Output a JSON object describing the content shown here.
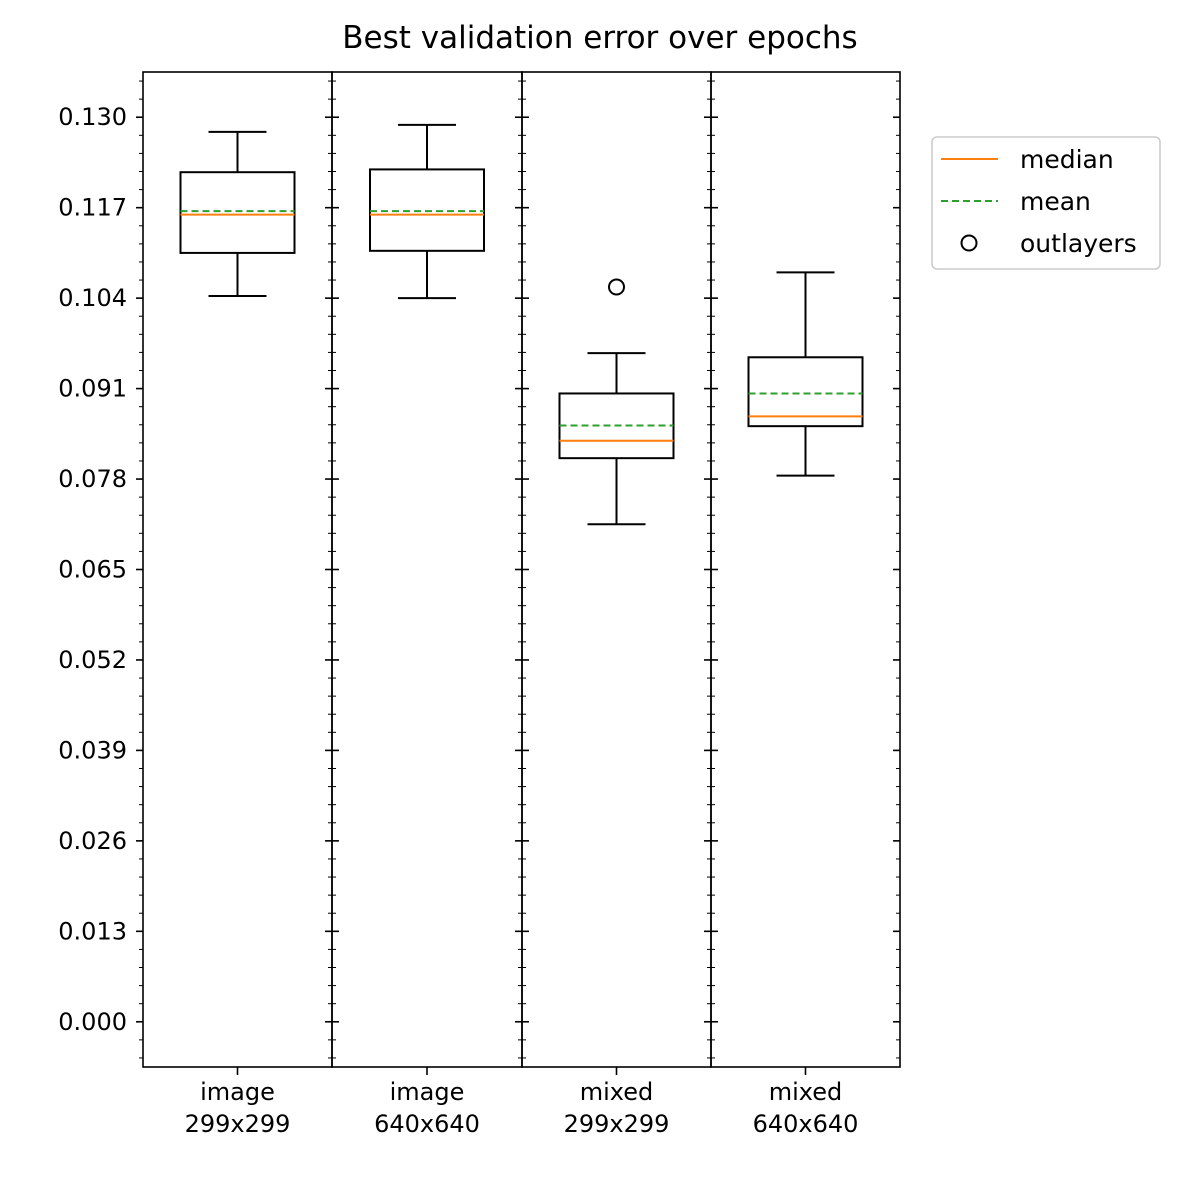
{
  "chart_data": {
    "type": "box",
    "title": "Best validation error over epochs",
    "xlabel": "",
    "ylabel": "",
    "ylim": [
      -0.0065,
      0.1365
    ],
    "yticks": [
      "0.000",
      "0.013",
      "0.026",
      "0.039",
      "0.052",
      "0.065",
      "0.078",
      "0.091",
      "0.104",
      "0.117",
      "0.130"
    ],
    "grid": false,
    "legend_position": "outside-right-top",
    "categories": [
      [
        "image",
        "299x299"
      ],
      [
        "image",
        "640x640"
      ],
      [
        "mixed",
        "299x299"
      ],
      [
        "mixed",
        "640x640"
      ]
    ],
    "boxes": [
      {
        "whisker_low": 0.1043,
        "q1": 0.1105,
        "median": 0.116,
        "mean": 0.1165,
        "q3": 0.1221,
        "whisker_high": 0.1279,
        "outliers": []
      },
      {
        "whisker_low": 0.104,
        "q1": 0.1108,
        "median": 0.116,
        "mean": 0.1165,
        "q3": 0.1225,
        "whisker_high": 0.1289,
        "outliers": []
      },
      {
        "whisker_low": 0.0715,
        "q1": 0.081,
        "median": 0.0835,
        "mean": 0.0857,
        "q3": 0.0903,
        "whisker_high": 0.0961,
        "outliers": [
          0.1056
        ]
      },
      {
        "whisker_low": 0.0785,
        "q1": 0.0856,
        "median": 0.087,
        "mean": 0.0903,
        "q3": 0.0955,
        "whisker_high": 0.1077,
        "outliers": []
      }
    ],
    "legend": [
      {
        "label": "median",
        "style": "solid",
        "color": "#ff7f0e"
      },
      {
        "label": "mean",
        "style": "dashed",
        "color": "#2ca02c"
      },
      {
        "label": "outlayers",
        "style": "marker",
        "color": "#000000"
      }
    ],
    "colors": {
      "median": "#ff7f0e",
      "mean": "#2ca02c",
      "box": "#000000"
    }
  }
}
